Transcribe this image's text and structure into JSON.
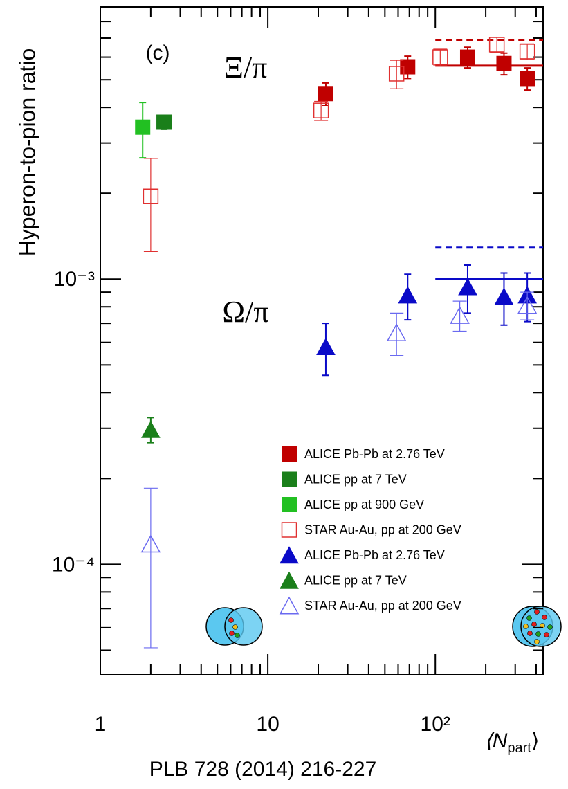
{
  "chart_data": {
    "type": "scatter",
    "y_label": "Hyperon-to-pion ratio",
    "x_label": "⟨N",
    "x_label_sub": "part",
    "x_label_end": "⟩",
    "panel_label": "(c)",
    "annotations": [
      "Ξ/π",
      "Ω/π"
    ],
    "footer": "PLB 728 (2014) 216-227",
    "log_x": true,
    "log_y": true,
    "xlim": [
      1,
      440
    ],
    "ylim": [
      4.1e-05,
      0.009
    ],
    "xticks": [
      1,
      10,
      {
        "value": 100,
        "label": "10²"
      }
    ],
    "yticks": [
      {
        "value": 0.0001,
        "label": "10⁻⁴"
      },
      {
        "value": 0.001,
        "label": "10⁻³"
      }
    ],
    "xminor_ticks": [
      2,
      3,
      4,
      5,
      6,
      7,
      8,
      9,
      20,
      30,
      40,
      50,
      60,
      70,
      80,
      90,
      200,
      300,
      400
    ],
    "yminor_ticks": [
      5e-05,
      6e-05,
      7e-05,
      8e-05,
      9e-05,
      0.0002,
      0.0003,
      0.0004,
      0.0005,
      0.0006,
      0.0007,
      0.0008,
      0.0009,
      0.002,
      0.003,
      0.004,
      0.005,
      0.006,
      0.007,
      0.008,
      0.009
    ],
    "legend": "lower right",
    "series": [
      {
        "name": "ALICE Pb-Pb at 2.76 TeV",
        "color": "#c00000",
        "marker": "square",
        "filled": true,
        "x": [
          22.2,
          68.4,
          156,
          257,
          354
        ],
        "values": [
          0.00447,
          0.00555,
          0.006,
          0.0057,
          0.00505
        ],
        "errors": [
          0.0004,
          0.0005,
          0.0005,
          0.0005,
          0.00045
        ]
      },
      {
        "name": "ALICE pp at 7 TeV",
        "color": "#1a7f1a",
        "marker": "square",
        "filled": true,
        "x": [
          2.4
        ],
        "values": [
          0.00355
        ],
        "errors": [
          0.0002
        ]
      },
      {
        "name": "ALICE pp at 900 GeV",
        "color": "#22c022",
        "marker": "square",
        "filled": true,
        "x": [
          1.79
        ],
        "values": [
          0.00341
        ],
        "errors": [
          0.00075
        ]
      },
      {
        "name": "STAR Au-Au, pp at 200 GeV",
        "color": "#e03030",
        "marker": "square",
        "filled": false,
        "x": [
          2,
          20.8,
          58.7,
          107,
          233,
          354
        ],
        "values": [
          0.00195,
          0.0039,
          0.00525,
          0.006,
          0.00664,
          0.00628
        ],
        "errors": [
          0.0007,
          0.0003,
          0.0006,
          0.0004,
          0.0004,
          0.0004
        ]
      },
      {
        "name": "ALICE Pb-Pb at 2.76 TeV",
        "color": "#0a0ac8",
        "marker": "triangle",
        "filled": true,
        "x": [
          22.2,
          68.4,
          156,
          257,
          354
        ],
        "values": [
          0.00058,
          0.00088,
          0.00094,
          0.00087,
          0.00088
        ],
        "errors": [
          0.00012,
          0.00016,
          0.00018,
          0.00018,
          0.00017
        ]
      },
      {
        "name": "ALICE pp at 7 TeV",
        "color": "#1a7f1a",
        "marker": "triangle",
        "filled": true,
        "x": [
          2
        ],
        "values": [
          0.000297
        ],
        "errors": [
          3e-05
        ]
      },
      {
        "name": "STAR Au-Au, pp at 200 GeV",
        "color": "#6a6af0",
        "marker": "triangle",
        "filled": false,
        "x": [
          2,
          58.7,
          140,
          354
        ],
        "values": [
          0.000118,
          0.00065,
          0.000747,
          0.00081
        ],
        "errors": [
          6.7e-05,
          0.00011,
          9e-05,
          9e-05
        ]
      }
    ],
    "reference_lines": [
      {
        "color": "#c00000",
        "dashed": false,
        "value": 0.0056,
        "x_from": 100
      },
      {
        "color": "#c00000",
        "dashed": true,
        "value": 0.0069,
        "x_from": 100
      },
      {
        "color": "#0a0ac8",
        "dashed": false,
        "value": 0.001,
        "x_from": 100
      },
      {
        "color": "#0a0ac8",
        "dashed": true,
        "value": 0.00129,
        "x_from": 100
      }
    ]
  }
}
